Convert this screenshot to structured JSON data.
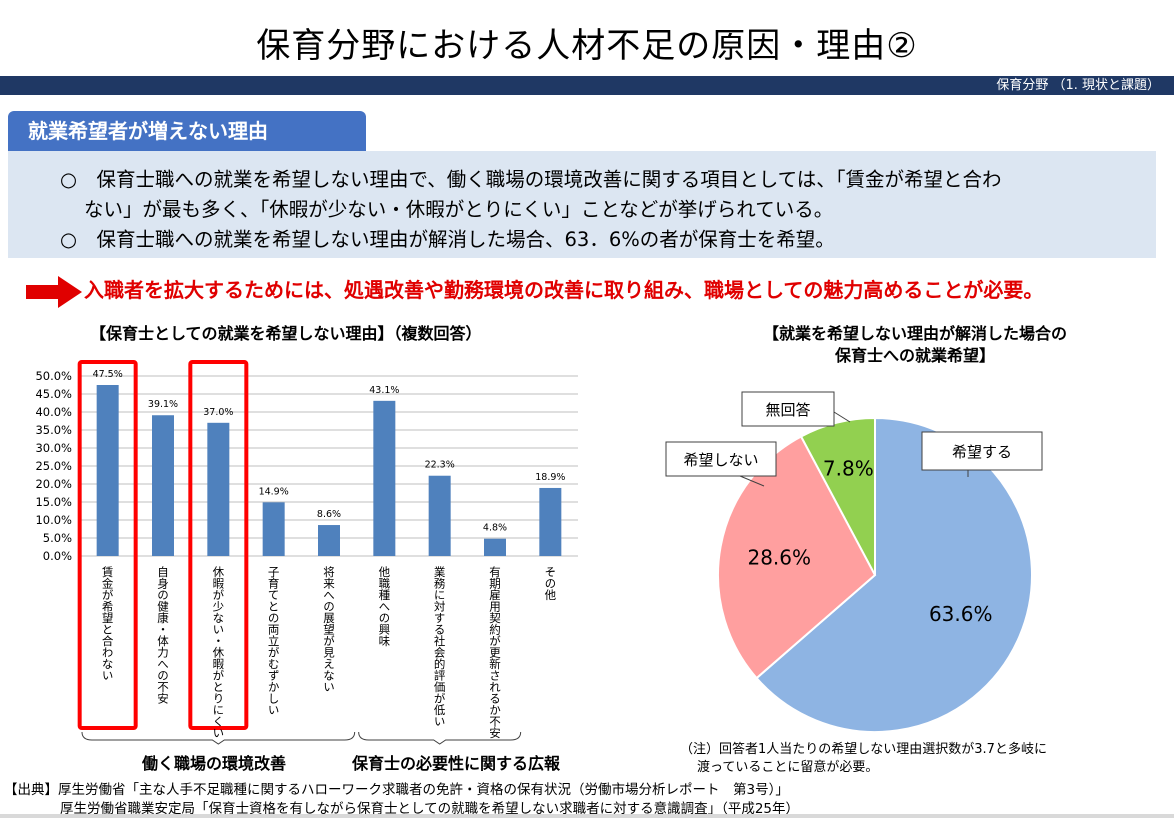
{
  "page": {
    "title": "保育分野における人材不足の原因・理由②",
    "breadcrumb": "保育分野 （1. 現状と課題）",
    "section_tag": "就業希望者が増えない理由",
    "summary": [
      "○　保育士職への就業を希望しない理由で、働く職場の環境改善に関する項目としては、「賃金が希望と合わ",
      "ない」が最も多く、「休暇が少ない・休暇がとりにくい」ことなどが挙げられている。",
      "○　保育士職への就業を希望しない理由が解消した場合、63．6%の者が保育士を希望。"
    ],
    "conclusion": "入職者を拡大するためには、処遇改善や勤務環境の改善に取り組み、職場としての魅力高めることが必要。",
    "note": [
      "（注）回答者1人当たりの希望しない理由選択数が3.7と多岐に",
      "渡っていることに留意が必要。"
    ],
    "source": [
      "【出典】厚生労働省「主な人手不足職種に関するハローワーク求職者の免許・資格の保有状況（労働市場分析レポート　第3号）」",
      "厚生労働省職業安定局「保育士資格を有しながら保育士としての就職を希望しない求職者に対する意識調査」（平成25年）"
    ],
    "colors": {
      "header_bar": "#1f3864",
      "accent": "#4472c4",
      "summary_bg": "#dce6f2",
      "highlight": "#e00000"
    }
  },
  "chart_data": [
    {
      "type": "bar",
      "title": "【保育士としての就業を希望しない理由】（複数回答）",
      "categories": [
        "賃金が希望と合わない",
        "自身の健康・体力への不安",
        "休暇が少ない・休暇がとりにくい",
        "子育てとの両立がむずかしい",
        "将来への展望が見えない",
        "他職種への興味",
        "業務に対する社会的評価が低い",
        "有期雇用契約が更新されるか不安",
        "その他"
      ],
      "values": [
        47.5,
        39.1,
        37.0,
        14.9,
        8.6,
        43.1,
        22.3,
        4.8,
        18.9
      ],
      "value_labels": [
        "47.5%",
        "39.1%",
        "37.0%",
        "14.9%",
        "8.6%",
        "43.1%",
        "22.3%",
        "4.8%",
        "18.9%"
      ],
      "highlighted_categories": [
        "賃金が希望と合わない",
        "休暇が少ない・休暇がとりにくい"
      ],
      "groups": [
        {
          "label": "働く職場の環境改善",
          "categories": [
            "賃金が希望と合わない",
            "自身の健康・体力への不安",
            "休暇が少ない・休暇がとりにくい",
            "子育てとの両立がむずかしい",
            "将来への展望が見えない"
          ]
        },
        {
          "label": "保育士の必要性に関する広報",
          "categories": [
            "他職種への興味",
            "業務に対する社会的評価が低い",
            "有期雇用契約が更新されるか不安"
          ]
        }
      ],
      "ylim": [
        0,
        50
      ],
      "yticks": [
        "0.0%",
        "5.0%",
        "10.0%",
        "15.0%",
        "20.0%",
        "25.0%",
        "30.0%",
        "35.0%",
        "40.0%",
        "45.0%",
        "50.0%"
      ],
      "grid": true,
      "bar_color": "#4f81bd"
    },
    {
      "type": "pie",
      "title": "【就業を希望しない理由が解消した場合の保育士への就業希望】",
      "title_lines": [
        "【就業を希望しない理由が解消した場合の",
        "保育士への就業希望】"
      ],
      "slices": [
        {
          "label": "希望する",
          "value": 63.6,
          "value_label": "63.6%",
          "color": "#8eb4e3"
        },
        {
          "label": "希望しない",
          "value": 28.6,
          "value_label": "28.6%",
          "color": "#ff9f9f"
        },
        {
          "label": "無回答",
          "value": 7.8,
          "value_label": "7.8%",
          "color": "#92d050"
        }
      ],
      "start": "12 o'clock, clockwise"
    }
  ]
}
